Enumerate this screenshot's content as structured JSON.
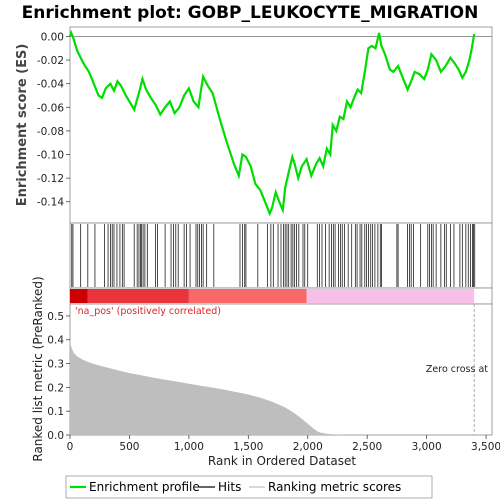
{
  "chart_data": {
    "type": "line",
    "title": "Enrichment plot: GOBP_LEUKOCYTE_MIGRATION",
    "panels": {
      "enrichment": {
        "ylabel": "Enrichment score (ES)",
        "ylim": [
          -0.158,
          0.008
        ],
        "yticks": [
          "0.00",
          "-0.02",
          "-0.04",
          "-0.06",
          "-0.08",
          "-0.10",
          "-0.12",
          "-0.14"
        ],
        "ytick_values": [
          0.0,
          -0.02,
          -0.04,
          -0.06,
          -0.08,
          -0.1,
          -0.12,
          -0.14
        ],
        "series_name": "Enrichment profile",
        "color": "#00dd00",
        "x": [
          0,
          10,
          30,
          60,
          90,
          120,
          160,
          200,
          240,
          270,
          300,
          340,
          370,
          400,
          430,
          470,
          500,
          540,
          580,
          610,
          640,
          680,
          720,
          760,
          800,
          840,
          880,
          920,
          960,
          1000,
          1040,
          1080,
          1120,
          1160,
          1200,
          1260,
          1320,
          1380,
          1420,
          1450,
          1480,
          1520,
          1560,
          1600,
          1640,
          1680,
          1700,
          1730,
          1760,
          1790,
          1810,
          1840,
          1870,
          1890,
          1920,
          1950,
          1990,
          2030,
          2070,
          2100,
          2130,
          2160,
          2190,
          2210,
          2240,
          2270,
          2300,
          2330,
          2360,
          2390,
          2420,
          2450,
          2480,
          2510,
          2540,
          2570,
          2600,
          2620,
          2650,
          2690,
          2720,
          2760,
          2800,
          2840,
          2870,
          2900,
          2940,
          2980,
          3010,
          3040,
          3080,
          3120,
          3160,
          3200,
          3230,
          3270,
          3300,
          3330,
          3360,
          3380,
          3400
        ],
        "y": [
          0.0,
          0.003,
          -0.002,
          -0.012,
          -0.018,
          -0.024,
          -0.03,
          -0.04,
          -0.05,
          -0.052,
          -0.044,
          -0.04,
          -0.046,
          -0.038,
          -0.042,
          -0.05,
          -0.055,
          -0.062,
          -0.048,
          -0.036,
          -0.045,
          -0.052,
          -0.058,
          -0.066,
          -0.06,
          -0.055,
          -0.065,
          -0.06,
          -0.05,
          -0.044,
          -0.055,
          -0.06,
          -0.034,
          -0.042,
          -0.048,
          -0.07,
          -0.09,
          -0.108,
          -0.118,
          -0.1,
          -0.102,
          -0.11,
          -0.125,
          -0.13,
          -0.14,
          -0.15,
          -0.145,
          -0.132,
          -0.14,
          -0.147,
          -0.128,
          -0.115,
          -0.102,
          -0.108,
          -0.12,
          -0.11,
          -0.104,
          -0.118,
          -0.108,
          -0.103,
          -0.11,
          -0.095,
          -0.1,
          -0.075,
          -0.08,
          -0.068,
          -0.07,
          -0.055,
          -0.06,
          -0.052,
          -0.045,
          -0.048,
          -0.03,
          -0.01,
          -0.008,
          -0.01,
          0.003,
          -0.008,
          -0.015,
          -0.028,
          -0.03,
          -0.025,
          -0.035,
          -0.045,
          -0.038,
          -0.03,
          -0.032,
          -0.036,
          -0.028,
          -0.015,
          -0.02,
          -0.03,
          -0.025,
          -0.018,
          -0.022,
          -0.028,
          -0.035,
          -0.03,
          -0.02,
          -0.01,
          0.002
        ]
      },
      "hits": {
        "series_name": "Hits",
        "positions": [
          15,
          25,
          90,
          150,
          210,
          290,
          320,
          340,
          355,
          370,
          395,
          420,
          440,
          455,
          540,
          565,
          580,
          592,
          603,
          615,
          630,
          650,
          720,
          735,
          800,
          850,
          870,
          890,
          910,
          960,
          980,
          1010,
          1060,
          1075,
          1090,
          1105,
          1120,
          1150,
          1210,
          1430,
          1450,
          1470,
          1480,
          1580,
          1660,
          1690,
          1710,
          1750,
          1775,
          1795,
          1810,
          1825,
          1840,
          1860,
          1875,
          1890,
          1905,
          1925,
          1960,
          1975,
          2000,
          2080,
          2100,
          2120,
          2150,
          2180,
          2200,
          2215,
          2230,
          2260,
          2275,
          2290,
          2310,
          2340,
          2370,
          2400,
          2415,
          2440,
          2455,
          2480,
          2495,
          2510,
          2530,
          2545,
          2565,
          2590,
          2610,
          2620,
          2750,
          2760,
          2840,
          2855,
          2870,
          2890,
          2950,
          3010,
          3025,
          3040,
          3055,
          3080,
          3120,
          3150,
          3165,
          3200,
          3230,
          3280,
          3300,
          3330,
          3350,
          3370,
          3385,
          3395,
          3405
        ]
      },
      "ranked": {
        "ylabel": "Ranked list metric (PreRanked)",
        "xlabel": "Rank in Ordered Dataset",
        "series_name": "Ranking metric scores",
        "ylim": [
          0,
          0.55
        ],
        "yticks": [
          "0.0",
          "0.1",
          "0.2",
          "0.3",
          "0.4",
          "0.5"
        ],
        "ytick_values": [
          0.0,
          0.1,
          0.2,
          0.3,
          0.4,
          0.5
        ],
        "xlim": [
          0,
          3550
        ],
        "xticks": [
          "0",
          "500",
          "1,000",
          "1,500",
          "2,000",
          "2,500",
          "3,000",
          "3,500"
        ],
        "xtick_values": [
          0,
          500,
          1000,
          1500,
          2000,
          2500,
          3000,
          3500
        ],
        "x": [
          0,
          10,
          30,
          60,
          100,
          150,
          200,
          300,
          400,
          500,
          600,
          700,
          800,
          900,
          1000,
          1100,
          1200,
          1300,
          1400,
          1500,
          1600,
          1700,
          1800,
          1850,
          1900,
          1950,
          2000,
          2050,
          2080,
          2100,
          2150,
          2200,
          2300,
          2500,
          3000,
          3400
        ],
        "y": [
          0.4,
          0.37,
          0.345,
          0.33,
          0.318,
          0.307,
          0.298,
          0.285,
          0.272,
          0.26,
          0.251,
          0.241,
          0.232,
          0.224,
          0.215,
          0.207,
          0.199,
          0.19,
          0.18,
          0.17,
          0.157,
          0.14,
          0.118,
          0.104,
          0.087,
          0.068,
          0.048,
          0.026,
          0.015,
          0.011,
          0.006,
          0.003,
          0.001,
          0.0,
          0.0,
          0.0
        ],
        "fill_color": "#bebebe",
        "annotation_pos": "'na_pos' (positively correlated)",
        "annotation_zero": "Zero cross at",
        "zero_cross_x": 3400
      },
      "heat_bar": {
        "segments": [
          {
            "from": 0,
            "to": 150,
            "color": "#cc0000"
          },
          {
            "from": 150,
            "to": 1000,
            "color": "#e8343a"
          },
          {
            "from": 1000,
            "to": 1990,
            "color": "#f86868"
          },
          {
            "from": 1990,
            "to": 3400,
            "color": "#f8c0e8"
          }
        ]
      }
    },
    "legend": {
      "placement": "bottom",
      "items": [
        {
          "label": "Enrichment profile",
          "color": "#00dd00"
        },
        {
          "label": "Hits",
          "color": "#000000"
        },
        {
          "label": "Ranking metric scores",
          "color": "#bebebe"
        }
      ]
    }
  }
}
